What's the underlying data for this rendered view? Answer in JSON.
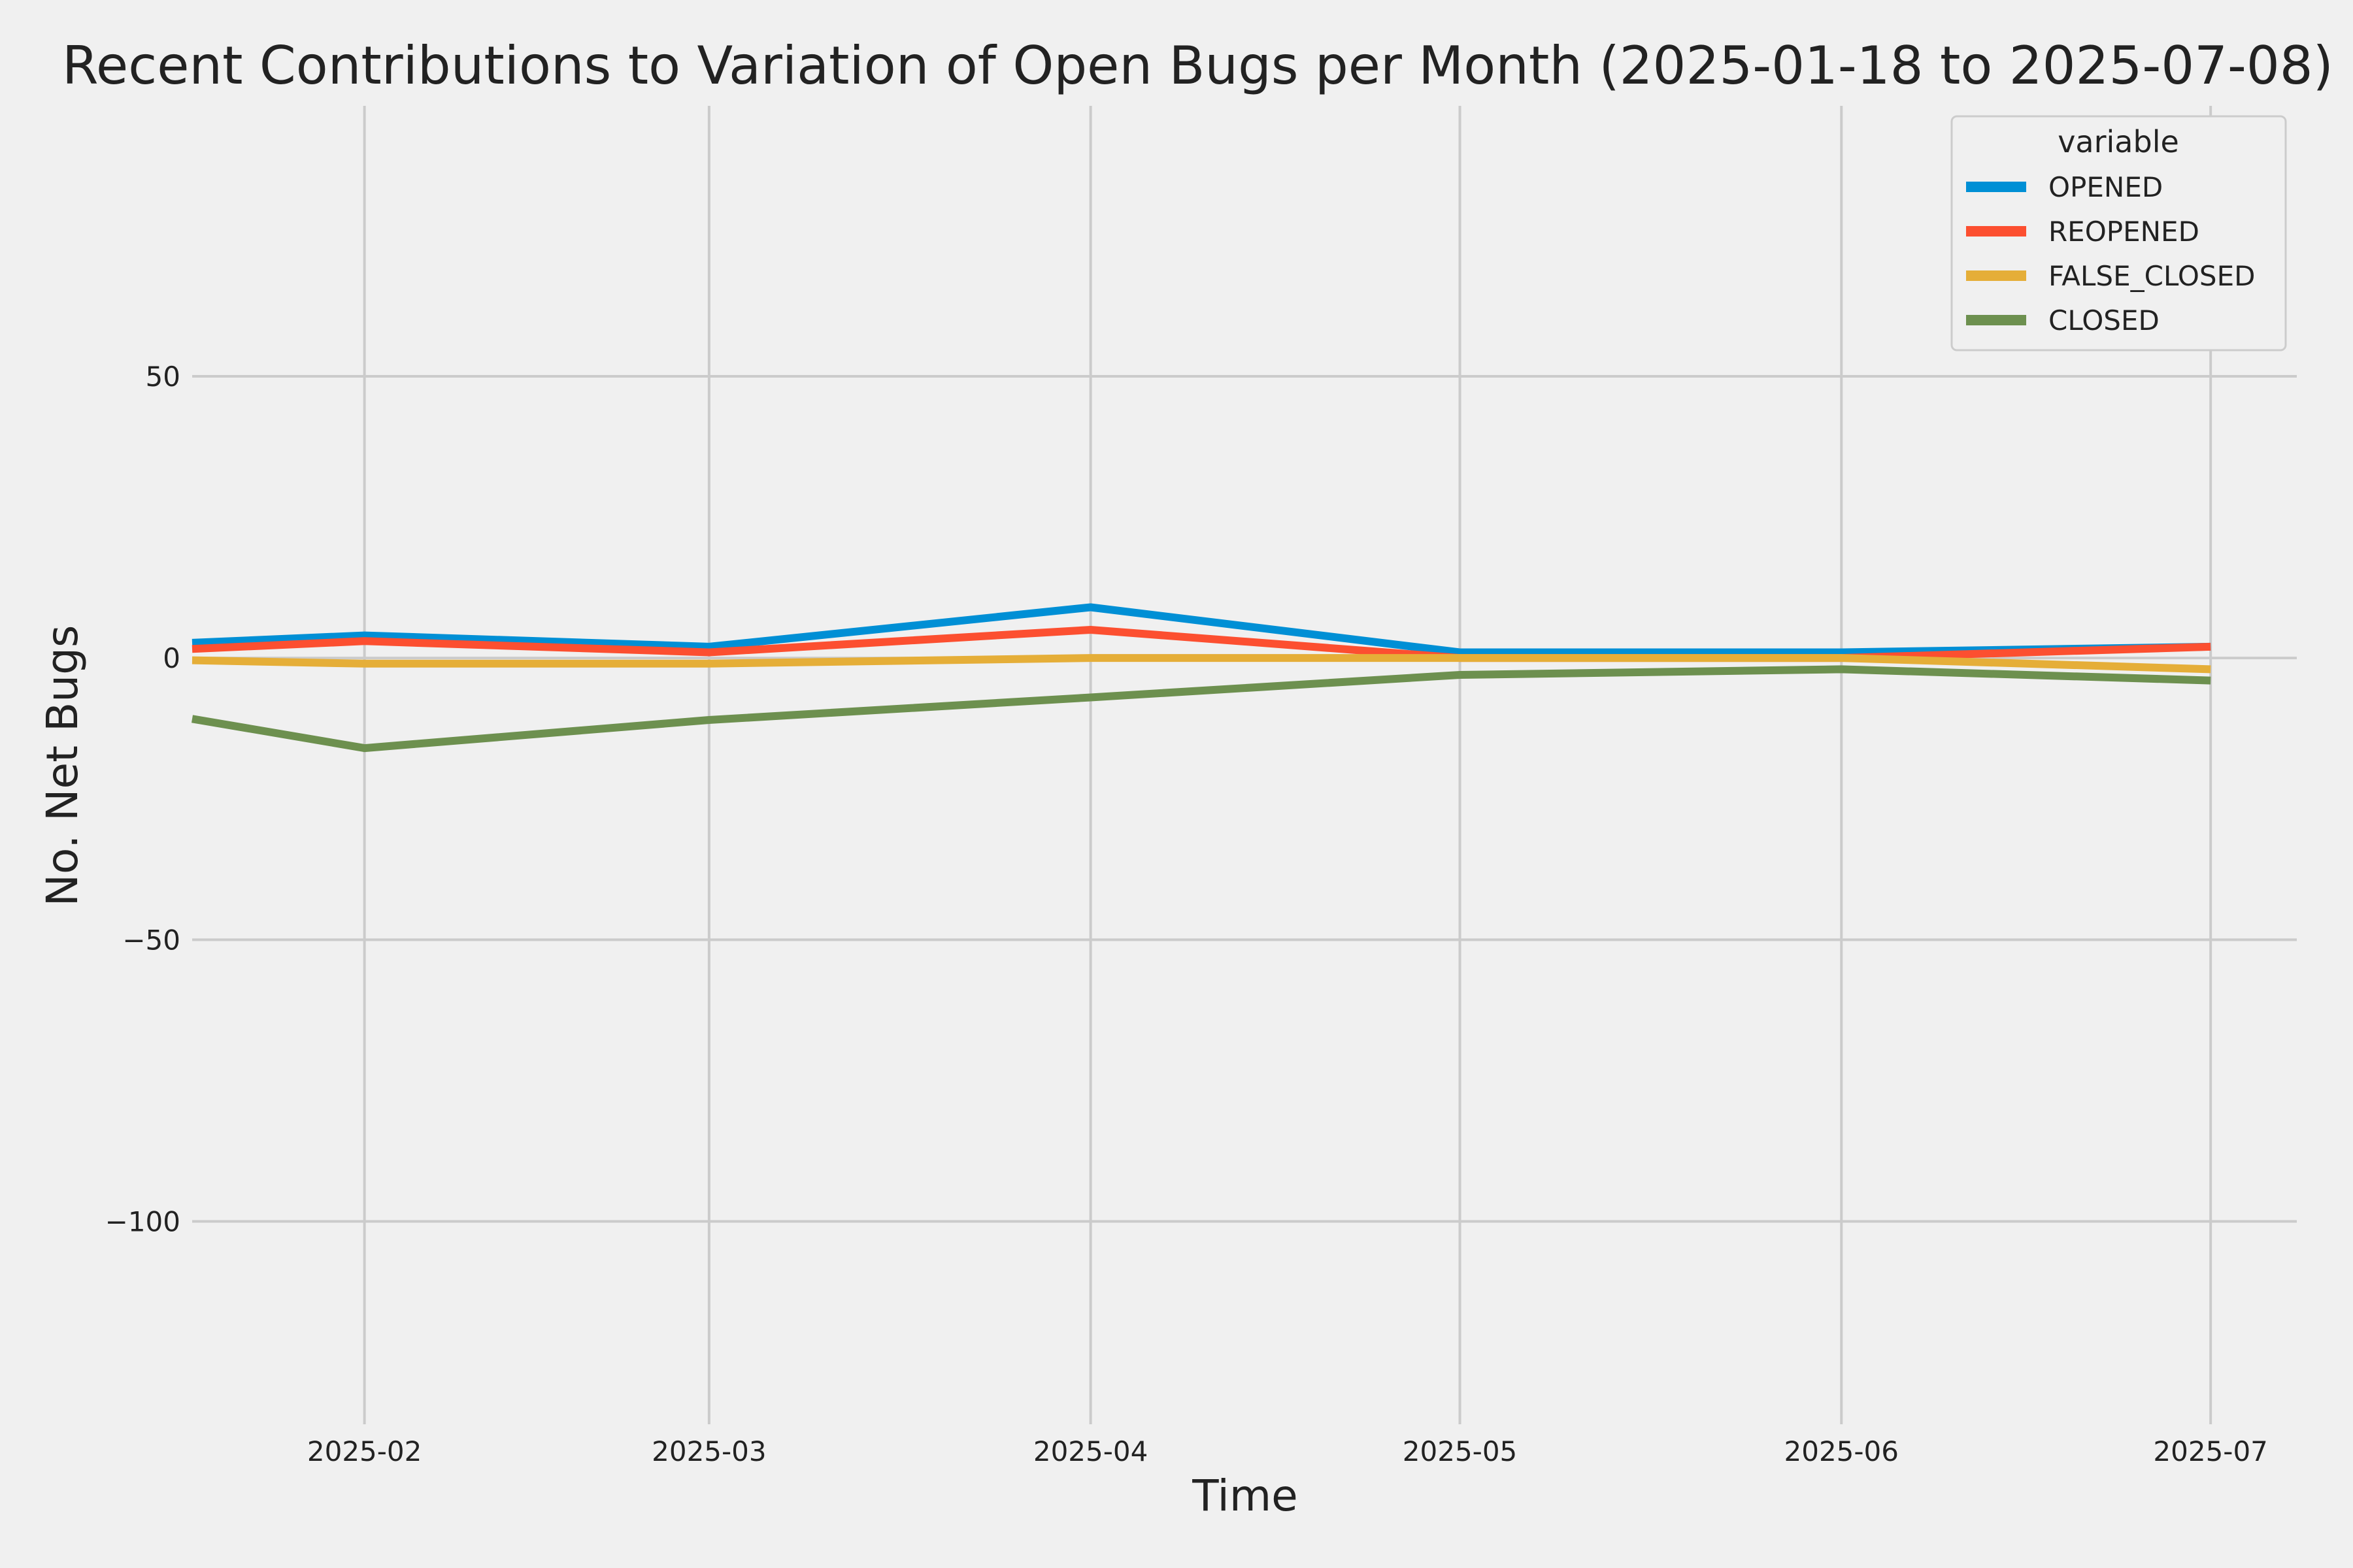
{
  "chart_data": {
    "type": "line",
    "title": "Recent Contributions to Variation of Open Bugs per Month (2025-01-18 to 2025-07-08)",
    "xlabel": "Time",
    "ylabel": "No. Net Bugs",
    "xlim": [
      "2025-01-18",
      "2025-07-08"
    ],
    "ylim": [
      -136,
      98
    ],
    "x_ticks": [
      "2025-02",
      "2025-03",
      "2025-04",
      "2025-05",
      "2025-06",
      "2025-07"
    ],
    "y_ticks": [
      50,
      0,
      -50,
      -100
    ],
    "y_tick_labels": [
      "50",
      "0",
      "−50",
      "−100"
    ],
    "grid": true,
    "legend": {
      "title": "variable",
      "position": "top-right"
    },
    "x": [
      "2025-01-18",
      "2025-02-01",
      "2025-03-01",
      "2025-04-01",
      "2025-05-01",
      "2025-06-01",
      "2025-07-01"
    ],
    "series": [
      {
        "name": "OPENED",
        "color": "#008fd5",
        "values": [
          2.7,
          4,
          2,
          9,
          1,
          1,
          2
        ]
      },
      {
        "name": "REOPENED",
        "color": "#fc4f30",
        "values": [
          1.6,
          3,
          1,
          5,
          0,
          0,
          2
        ]
      },
      {
        "name": "FALSE_CLOSED",
        "color": "#e5ae38",
        "values": [
          -0.4,
          -1,
          -1,
          0,
          0,
          0,
          -2
        ]
      },
      {
        "name": "CLOSED",
        "color": "#6d904f",
        "values": [
          -10.8,
          -16,
          -11,
          -7,
          -3,
          -2,
          -4
        ]
      }
    ]
  }
}
